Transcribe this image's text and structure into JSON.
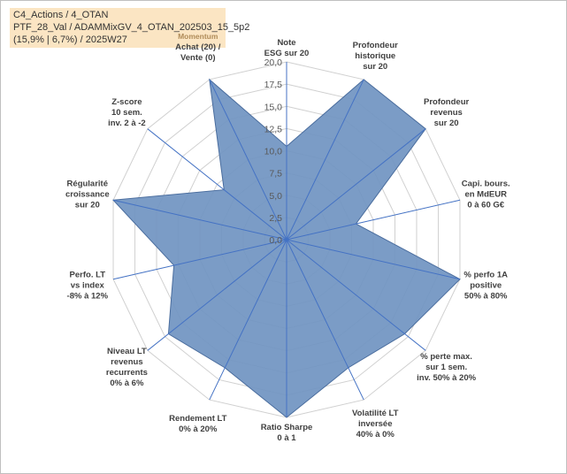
{
  "header": {
    "line1": "C4_Actions / 4_OTAN",
    "line2": "PTF_28_Val / ADAMMixGV_4_OTAN_202503_15_5p2",
    "line3": "(15,9% | 6,7%) / 2025W27"
  },
  "colors": {
    "fill": "#7094c1",
    "stroke": "#4a6d9e",
    "axis": "#4472c4",
    "grid": "#d0d0d0",
    "subtitle": "#b08c59"
  },
  "chart_data": {
    "type": "radar",
    "r_min": 0,
    "r_max": 20,
    "ticks": [
      "0,0",
      "2,5",
      "5,0",
      "7,5",
      "10,0",
      "12,5",
      "15,0",
      "17,5",
      "20,0"
    ],
    "categories": [
      {
        "lines": [
          "Note",
          "ESG sur 20"
        ],
        "value": 10.5
      },
      {
        "lines": [
          "Profondeur",
          "historique",
          "sur 20"
        ],
        "value": 20
      },
      {
        "lines": [
          "Profondeur",
          "revenus",
          "sur 20"
        ],
        "value": 20
      },
      {
        "lines": [
          "Capi. bours.",
          "en MdEUR",
          "0 à 60 G€"
        ],
        "value": 8
      },
      {
        "lines": [
          "% perfo 1A",
          "positive",
          "50% à 80%"
        ],
        "value": 20
      },
      {
        "lines": [
          "% perte max.",
          "sur 1 sem.",
          "inv. 50% à 20%"
        ],
        "value": 17
      },
      {
        "lines": [
          "Volatilité LT",
          "inversée",
          "40% à 0%"
        ],
        "value": 16
      },
      {
        "lines": [
          "Ratio Sharpe",
          "0 à 1"
        ],
        "value": 20
      },
      {
        "lines": [
          "Rendement LT",
          "0% à 20%"
        ],
        "value": 16
      },
      {
        "lines": [
          "Niveau LT",
          "revenus",
          "recurrents",
          "0% à 6%"
        ],
        "value": 17
      },
      {
        "lines": [
          "Perfo. LT",
          "vs index",
          "-8% à 12%"
        ],
        "value": 13
      },
      {
        "lines": [
          "Régularité",
          "croissance",
          "sur 20"
        ],
        "value": 20
      },
      {
        "lines": [
          "Z-score",
          "10 sem.",
          "inv. 2 à -2"
        ],
        "value": 9
      },
      {
        "subtitle": "Momentum",
        "lines": [
          "Achat (20) /",
          "Vente (0)"
        ],
        "value": 20
      }
    ]
  }
}
